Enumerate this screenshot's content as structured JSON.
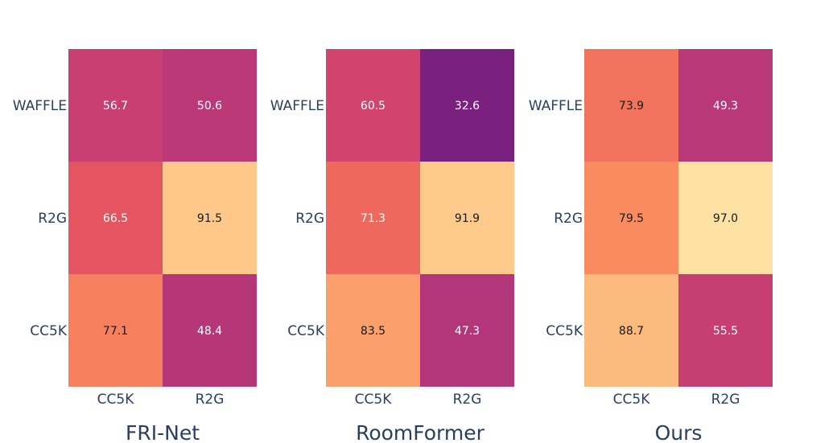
{
  "chart_data": [
    {
      "type": "heatmap",
      "title": "FRI-Net",
      "x_categories": [
        "CC5K",
        "R2G"
      ],
      "y_categories": [
        "WAFFLE",
        "R2G",
        "CC5K"
      ],
      "values": [
        [
          56.7,
          50.6
        ],
        [
          66.5,
          91.5
        ],
        [
          77.1,
          48.4
        ]
      ]
    },
    {
      "type": "heatmap",
      "title": "RoomFormer",
      "x_categories": [
        "CC5K",
        "R2G"
      ],
      "y_categories": [
        "WAFFLE",
        "R2G",
        "CC5K"
      ],
      "values": [
        [
          60.5,
          32.6
        ],
        [
          71.3,
          91.9
        ],
        [
          83.5,
          47.3
        ]
      ]
    },
    {
      "type": "heatmap",
      "title": "Ours",
      "x_categories": [
        "CC5K",
        "R2G"
      ],
      "y_categories": [
        "WAFFLE",
        "R2G",
        "CC5K"
      ],
      "values": [
        [
          73.9,
          49.3
        ],
        [
          79.5,
          97.0
        ],
        [
          88.7,
          55.5
        ]
      ]
    }
  ],
  "colorscale": "magma",
  "color_range": [
    30,
    100
  ]
}
